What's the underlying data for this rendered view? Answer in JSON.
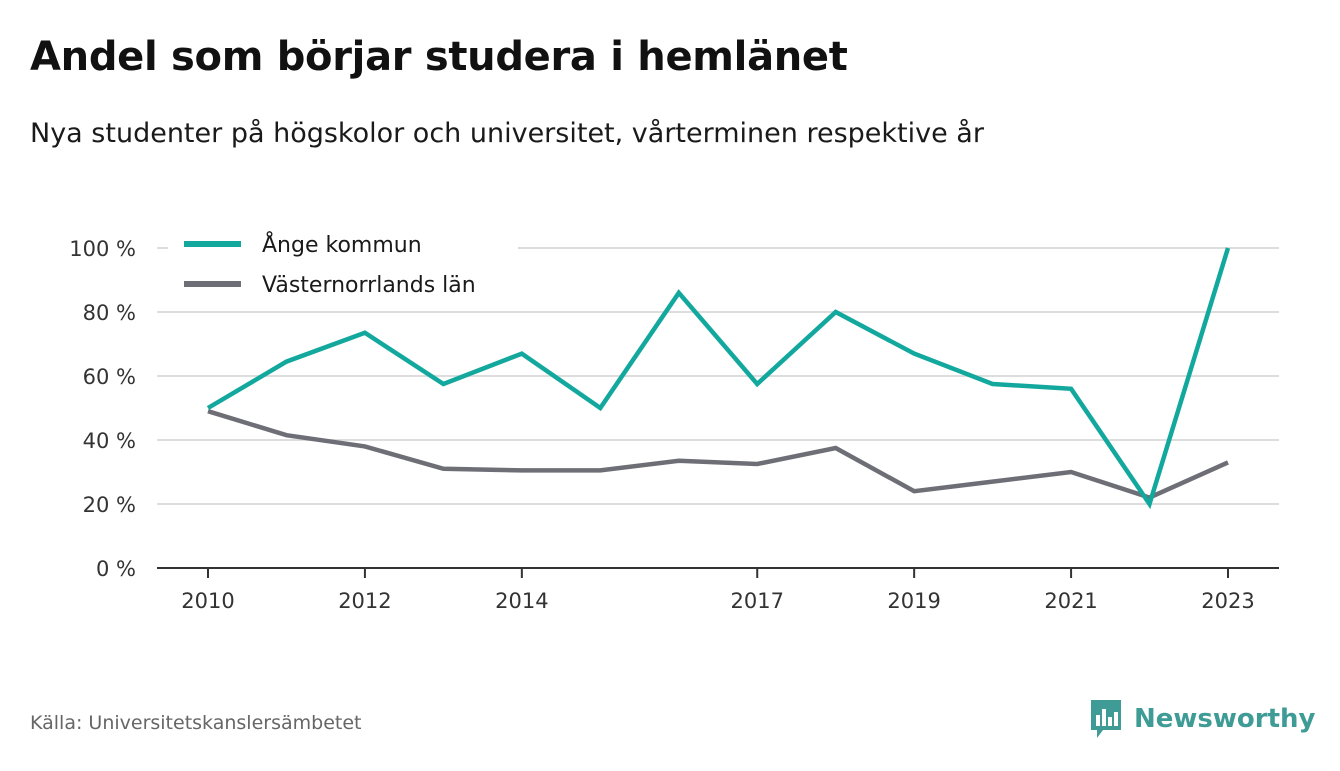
{
  "title": "Andel som börjar studera i hemlänet",
  "subtitle": "Nya studenter på högskolor och universitet, vårterminen respektive år",
  "source": "Källa: Universitetskanslersämbetet",
  "brand": {
    "name": "Newsworthy",
    "icon": "newsworthy-logo-icon"
  },
  "colors": {
    "ange": "#13a89e",
    "vasternorrland": "#6e6e76",
    "grid": "#dddddd",
    "axis": "#333333",
    "brand": "#3e9b95"
  },
  "chart_data": {
    "type": "line",
    "x": [
      2010,
      2011,
      2012,
      2013,
      2014,
      2015,
      2016,
      2017,
      2018,
      2019,
      2020,
      2021,
      2022,
      2023
    ],
    "x_tick_labels": [
      "2010",
      "2012",
      "2014",
      "2017",
      "2019",
      "2021",
      "2023"
    ],
    "y_tick_labels": [
      "0 %",
      "20 %",
      "40 %",
      "60 %",
      "80 %",
      "100 %"
    ],
    "ylim": [
      0,
      100
    ],
    "grid": true,
    "legend_position": "top-left",
    "series": [
      {
        "name": "Ånge kommun",
        "color": "#13a89e",
        "values": [
          50,
          64.5,
          73.5,
          57.5,
          67,
          50,
          86,
          57.5,
          80,
          67,
          57.5,
          56,
          20,
          100
        ]
      },
      {
        "name": "Västernorrlands län",
        "color": "#6e6e76",
        "values": [
          49,
          41.5,
          38,
          31,
          30.5,
          30.5,
          33.5,
          32.5,
          37.5,
          24,
          27,
          30,
          22,
          33
        ]
      }
    ]
  }
}
